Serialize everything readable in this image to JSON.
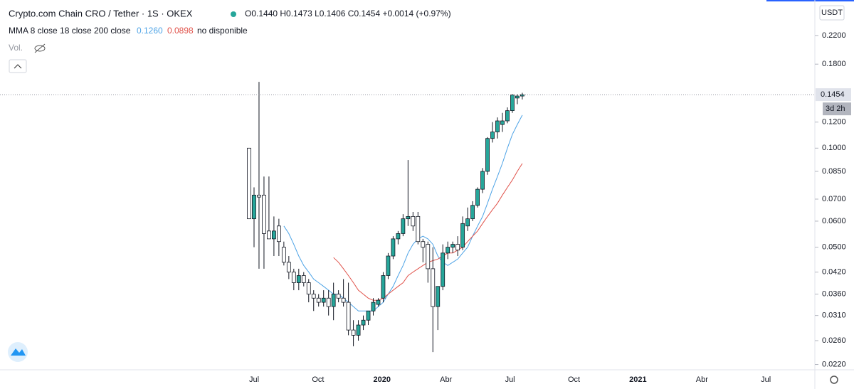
{
  "chart_data": {
    "type": "candlestick",
    "title": "Crypto.com Chain CRO / Tether · 1S · OKEX",
    "ohlc_legend": "O0.1440 H0.1473 L0.1406 C0.1454 +0.0014 (+0.97%)",
    "indicator": {
      "label": "MMA 8 close 18 close 200 close",
      "printed": [
        "0.1260",
        "0.0898",
        "no disponible"
      ]
    },
    "volume_label": "Vol.",
    "currency": "USDT",
    "price_label": "0.1454",
    "countdown": "3d 2h",
    "up_color": "#26a69a",
    "down_color": "#ffffff",
    "log_scale": true,
    "ylim": [
      0.0212,
      0.282
    ],
    "yticks": [
      {
        "value": 0.022,
        "label": "0.0220"
      },
      {
        "value": 0.026,
        "label": "0.0260"
      },
      {
        "value": 0.031,
        "label": "0.0310"
      },
      {
        "value": 0.036,
        "label": "0.0360"
      },
      {
        "value": 0.042,
        "label": "0.0420"
      },
      {
        "value": 0.05,
        "label": "0.0500"
      },
      {
        "value": 0.06,
        "label": "0.0600"
      },
      {
        "value": 0.07,
        "label": "0.0700"
      },
      {
        "value": 0.085,
        "label": "0.0850"
      },
      {
        "value": 0.1,
        "label": "0.1000"
      },
      {
        "value": 0.12,
        "label": "0.1200"
      },
      {
        "value": 0.18,
        "label": "0.1800"
      },
      {
        "value": 0.22,
        "label": "0.2200"
      }
    ],
    "x_labels": [
      "Jul",
      "Oct",
      "2020",
      "Abr",
      "Jul",
      "Oct",
      "2021",
      "Abr",
      "Jul"
    ],
    "candles": {
      "open": [
        0.1,
        0.061,
        0.072,
        0.072,
        0.056,
        0.053,
        0.058,
        0.05,
        0.045,
        0.042,
        0.039,
        0.041,
        0.039,
        0.036,
        0.035,
        0.034,
        0.035,
        0.033,
        0.036,
        0.035,
        0.034,
        0.028,
        0.027,
        0.029,
        0.03,
        0.032,
        0.0335,
        0.035,
        0.041,
        0.047,
        0.053,
        0.055,
        0.061,
        0.062,
        0.062,
        0.052,
        0.051,
        0.043,
        0.033,
        0.038,
        0.048,
        0.05,
        0.051,
        0.05,
        0.058,
        0.061,
        0.067,
        0.075,
        0.085,
        0.107,
        0.112,
        0.118,
        0.121,
        0.13,
        0.142,
        0.144
      ],
      "high": [
        0.1,
        0.076,
        0.159,
        0.082,
        0.082,
        0.062,
        0.061,
        0.052,
        0.047,
        0.043,
        0.043,
        0.042,
        0.04,
        0.037,
        0.036,
        0.037,
        0.037,
        0.039,
        0.037,
        0.04,
        0.039,
        0.03,
        0.03,
        0.031,
        0.032,
        0.035,
        0.035,
        0.042,
        0.048,
        0.054,
        0.056,
        0.063,
        0.092,
        0.064,
        0.064,
        0.053,
        0.052,
        0.05,
        0.038,
        0.051,
        0.052,
        0.052,
        0.054,
        0.062,
        0.066,
        0.069,
        0.076,
        0.087,
        0.108,
        0.12,
        0.124,
        0.128,
        0.133,
        0.146,
        0.146,
        0.1473
      ],
      "low": [
        0.061,
        0.05,
        0.043,
        0.043,
        0.053,
        0.047,
        0.047,
        0.044,
        0.04,
        0.037,
        0.037,
        0.038,
        0.034,
        0.032,
        0.033,
        0.033,
        0.031,
        0.03,
        0.034,
        0.033,
        0.027,
        0.025,
        0.026,
        0.028,
        0.029,
        0.031,
        0.033,
        0.034,
        0.04,
        0.046,
        0.051,
        0.054,
        0.058,
        0.056,
        0.051,
        0.045,
        0.039,
        0.024,
        0.028,
        0.037,
        0.046,
        0.048,
        0.047,
        0.049,
        0.056,
        0.06,
        0.066,
        0.073,
        0.083,
        0.104,
        0.107,
        0.112,
        0.119,
        0.128,
        0.136,
        0.1406
      ],
      "close": [
        0.061,
        0.072,
        0.071,
        0.055,
        0.053,
        0.056,
        0.052,
        0.045,
        0.042,
        0.039,
        0.041,
        0.039,
        0.036,
        0.035,
        0.034,
        0.035,
        0.033,
        0.036,
        0.035,
        0.034,
        0.028,
        0.027,
        0.029,
        0.03,
        0.032,
        0.034,
        0.0345,
        0.041,
        0.047,
        0.053,
        0.055,
        0.061,
        0.062,
        0.058,
        0.052,
        0.05,
        0.043,
        0.033,
        0.038,
        0.048,
        0.05,
        0.051,
        0.049,
        0.059,
        0.061,
        0.067,
        0.075,
        0.085,
        0.107,
        0.112,
        0.121,
        0.121,
        0.13,
        0.145,
        0.144,
        0.1454
      ]
    },
    "series": [
      {
        "color": "#4da3e6",
        "values": [
          null,
          null,
          null,
          null,
          null,
          null,
          null,
          0.058,
          0.055,
          0.051,
          0.047,
          0.044,
          0.042,
          0.04,
          0.039,
          0.038,
          0.037,
          0.036,
          0.036,
          0.035,
          0.034,
          0.033,
          0.032,
          0.032,
          0.032,
          0.032,
          0.033,
          0.034,
          0.036,
          0.038,
          0.041,
          0.044,
          0.048,
          0.051,
          0.053,
          0.054,
          0.053,
          0.051,
          0.047,
          0.045,
          0.044,
          0.045,
          0.046,
          0.048,
          0.05,
          0.054,
          0.058,
          0.062,
          0.068,
          0.075,
          0.082,
          0.09,
          0.1,
          0.11,
          0.118,
          0.126
        ]
      },
      {
        "color": "#e0524a",
        "values": [
          null,
          null,
          null,
          null,
          null,
          null,
          null,
          null,
          null,
          null,
          null,
          null,
          null,
          null,
          null,
          null,
          null,
          0.0465,
          0.045,
          0.043,
          0.041,
          0.039,
          0.037,
          0.036,
          0.035,
          0.0345,
          0.0345,
          0.035,
          0.036,
          0.037,
          0.038,
          0.039,
          0.041,
          0.042,
          0.043,
          0.044,
          0.045,
          0.0455,
          0.046,
          0.047,
          0.048,
          0.048,
          0.049,
          0.05,
          0.052,
          0.054,
          0.056,
          0.059,
          0.062,
          0.065,
          0.068,
          0.072,
          0.076,
          0.08,
          0.085,
          0.0898
        ]
      }
    ]
  }
}
